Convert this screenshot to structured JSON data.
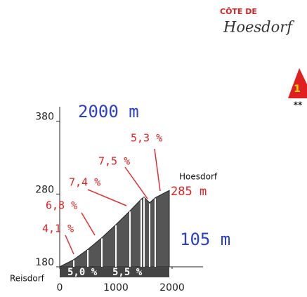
{
  "chart_data": {
    "type": "area",
    "title": "CÔTE DE",
    "subtitle": "Hoesdorf",
    "category": "1",
    "rating": "**",
    "start_label": "Reisdorf",
    "end_label": "Hoesdorf",
    "length_label": "2000 m",
    "summit_label": "285 m",
    "climb_label": "105 m",
    "x": [
      0,
      250,
      500,
      750,
      1000,
      1250,
      1450,
      1500,
      1600,
      1700,
      1950
    ],
    "values": [
      180,
      190,
      204,
      220,
      238,
      257,
      273,
      276,
      268,
      275,
      285
    ],
    "gradients": [
      "4,1 %",
      "6,8 %",
      "7,4 %",
      "7,5 %",
      "5,3 %",
      "5,0 %",
      "5,5 %"
    ],
    "color": "#555555",
    "xlim": [
      0,
      2550
    ],
    "xticks": [
      0,
      1000,
      2000
    ],
    "ylim": [
      180,
      400
    ],
    "yticks": [
      180,
      280,
      380
    ]
  }
}
